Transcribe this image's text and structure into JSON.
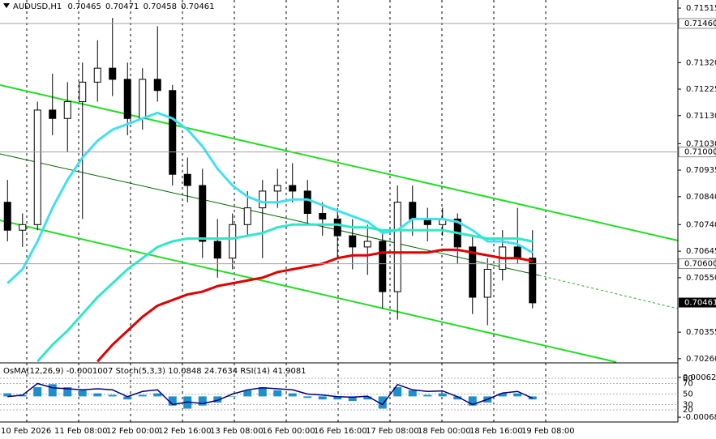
{
  "chart_data": {
    "type": "candlestick",
    "symbol": "AUDUSD,H1",
    "header_ohlc": [
      0.70465,
      0.70471,
      0.70458,
      0.70461
    ],
    "open": [
      0.7082,
      0.7072,
      0.7074,
      0.7115,
      0.7112,
      0.7118,
      0.7125,
      0.713,
      0.7126,
      0.7112,
      0.7126,
      0.7122,
      0.7092,
      0.7088,
      0.7068,
      0.7062,
      0.7074,
      0.708,
      0.7086,
      0.7088,
      0.7086,
      0.7078,
      0.7076,
      0.707,
      0.7066,
      0.7068,
      0.705,
      0.7082,
      0.7076,
      0.7074,
      0.7076,
      0.7066,
      0.7048,
      0.7058,
      0.7066,
      0.7062
    ],
    "high": [
      0.709,
      0.7078,
      0.7118,
      0.7128,
      0.7125,
      0.7132,
      0.714,
      0.7148,
      0.7132,
      0.713,
      0.7145,
      0.7124,
      0.7098,
      0.7094,
      0.7076,
      0.7078,
      0.7086,
      0.709,
      0.7094,
      0.7096,
      0.709,
      0.7082,
      0.708,
      0.7076,
      0.7074,
      0.7072,
      0.7088,
      0.7088,
      0.708,
      0.708,
      0.7078,
      0.707,
      0.7062,
      0.7072,
      0.708,
      0.7072
    ],
    "low": [
      0.7068,
      0.7066,
      0.7072,
      0.7106,
      0.71,
      0.7076,
      0.7118,
      0.712,
      0.7106,
      0.7108,
      0.7118,
      0.7088,
      0.7082,
      0.7062,
      0.7055,
      0.7058,
      0.707,
      0.7062,
      0.708,
      0.7082,
      0.7074,
      0.707,
      0.7062,
      0.7058,
      0.7056,
      0.7044,
      0.704,
      0.707,
      0.7068,
      0.707,
      0.706,
      0.7042,
      0.7038,
      0.7054,
      0.706,
      0.7044
    ],
    "close": [
      0.7072,
      0.7074,
      0.7115,
      0.7112,
      0.7118,
      0.7125,
      0.713,
      0.7126,
      0.7112,
      0.7126,
      0.7122,
      0.7092,
      0.7088,
      0.7068,
      0.7062,
      0.7074,
      0.708,
      0.7086,
      0.7088,
      0.7086,
      0.7078,
      0.7076,
      0.707,
      0.7066,
      0.7068,
      0.705,
      0.7082,
      0.7076,
      0.7074,
      0.7076,
      0.7066,
      0.7048,
      0.7058,
      0.7066,
      0.7062,
      0.7046
    ],
    "series": [
      {
        "color": "#40e0f0",
        "values": [
          0.7053,
          0.7058,
          0.7068,
          0.708,
          0.709,
          0.7098,
          0.7104,
          0.7108,
          0.711,
          0.7112,
          0.7114,
          0.7112,
          0.7108,
          0.7102,
          0.7094,
          0.7088,
          0.7084,
          0.7082,
          0.7082,
          0.7083,
          0.7083,
          0.7081,
          0.7079,
          0.7077,
          0.7075,
          0.7071,
          0.7072,
          0.7076,
          0.7076,
          0.7076,
          0.7075,
          0.7072,
          0.7068,
          0.7068,
          0.7067,
          0.7064
        ]
      },
      {
        "color": "#30e8c8",
        "values": [
          null,
          null,
          0.7025,
          0.7031,
          0.7036,
          0.7042,
          0.7048,
          0.7053,
          0.7058,
          0.7062,
          0.7066,
          0.7068,
          0.7069,
          0.7069,
          0.7069,
          0.7069,
          0.707,
          0.7071,
          0.7073,
          0.7074,
          0.7074,
          0.7074,
          0.7074,
          0.7073,
          0.7073,
          0.7072,
          0.7072,
          0.7072,
          0.7072,
          0.7072,
          0.7071,
          0.707,
          0.7069,
          0.7069,
          0.7069,
          0.7068
        ]
      },
      {
        "color": "#e00000",
        "values": [
          null,
          null,
          null,
          null,
          null,
          null,
          0.7025,
          0.7031,
          0.7036,
          0.7041,
          0.7045,
          0.7047,
          0.7049,
          0.705,
          0.7052,
          0.7053,
          0.7054,
          0.7055,
          0.7057,
          0.7058,
          0.7059,
          0.706,
          0.7062,
          0.7063,
          0.7063,
          0.7064,
          0.7064,
          0.7064,
          0.7064,
          0.7065,
          0.7065,
          0.7064,
          0.7063,
          0.7062,
          0.7062,
          0.7061
        ]
      }
    ],
    "ylim": [
      0.70248,
      0.71544
    ],
    "yticks": [
      0.71515,
      {
        "value": 0.7132,
        "label": "0.71320"
      },
      0.71225,
      {
        "value": 0.7113,
        "label": "0.71130"
      },
      {
        "value": 0.7103,
        "label": "0.71030"
      },
      0.70935,
      {
        "value": 0.7084,
        "label": "0.70840"
      },
      {
        "value": 0.7074,
        "label": "0.70740"
      },
      0.70645,
      {
        "value": 0.7055,
        "label": "0.70550"
      },
      0.70355,
      {
        "value": 0.7026,
        "label": "0.70260"
      }
    ],
    "levels": [
      {
        "value": 0.7146,
        "label": "0.71460"
      },
      {
        "value": 0.71,
        "label": "0.71000"
      },
      {
        "value": 0.706,
        "label": "0.70600"
      }
    ],
    "last_price": {
      "value": 0.70461,
      "label": "0.70461"
    },
    "time_labels": [
      "10 Feb 2026",
      "11 Feb 08:00",
      "12 Feb 00:00",
      "12 Feb 16:00",
      "13 Feb 08:00",
      "16 Feb 00:00",
      "16 Feb 16:00",
      "17 Feb 08:00",
      "18 Feb 00:00",
      "18 Feb 16:00",
      "19 Feb 08:00"
    ],
    "indicator": {
      "title": "OsMA(12,26,9) -0.0001007  Stoch(5,3,3) 10.0848 24.7634  RSI(14) 41.9081",
      "osma": [
        0.0001,
        5e-05,
        0.0003,
        0.0004,
        0.0003,
        0.0002,
        0.0001,
        5e-05,
        -0.0001,
        5e-05,
        0.0001,
        -0.0003,
        -0.0004,
        -0.0003,
        -0.0002,
        0,
        0.0002,
        0.0003,
        0.0002,
        0.0001,
        -5e-05,
        -0.0001,
        -0.0001,
        -0.00015,
        -0.0001,
        -0.0004,
        0.0003,
        0.0002,
        5e-05,
        0.0001,
        -0.0001,
        -0.0003,
        -0.0002,
        0.0001,
        0.0001,
        -0.0001
      ],
      "osma_color": "#1e90c8",
      "rsi": [
        45,
        48,
        70,
        62,
        60,
        58,
        60,
        58,
        45,
        55,
        58,
        30,
        35,
        32,
        38,
        50,
        58,
        62,
        60,
        58,
        50,
        48,
        45,
        44,
        46,
        30,
        68,
        58,
        55,
        56,
        45,
        30,
        40,
        52,
        55,
        42
      ],
      "rsi_color": "#000080",
      "ylim": [
        -0.00081,
        0.00099
      ],
      "yticks": [
        0.000622,
        -0.00068
      ],
      "rsi_lim": [
        0,
        100
      ],
      "levels": [
        80,
        70,
        50,
        30,
        20
      ]
    }
  }
}
